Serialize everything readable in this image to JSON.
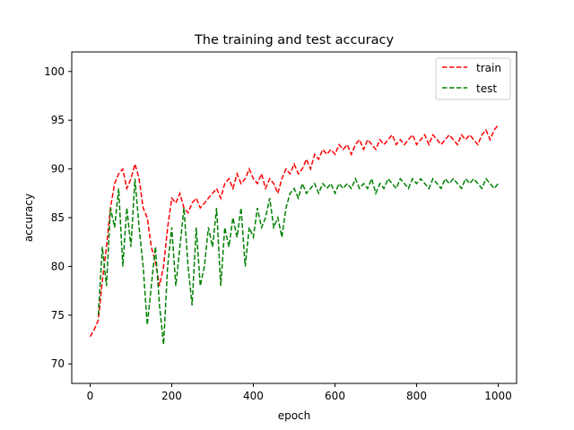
{
  "chart_data": {
    "type": "line",
    "title": "The training and test accuracy",
    "xlabel": "epoch",
    "ylabel": "accuracy",
    "xlim": [
      -45,
      1045
    ],
    "ylim": [
      68,
      102
    ],
    "xticks": [
      0,
      200,
      400,
      600,
      800,
      1000
    ],
    "yticks": [
      70,
      75,
      80,
      85,
      90,
      95,
      100
    ],
    "grid": false,
    "legend_position": "top-right",
    "series": [
      {
        "name": "train",
        "color": "#ff0000",
        "style": "dashed",
        "x": [
          0,
          10,
          20,
          30,
          40,
          50,
          60,
          70,
          80,
          90,
          100,
          110,
          120,
          130,
          140,
          150,
          160,
          170,
          180,
          190,
          200,
          210,
          220,
          230,
          240,
          250,
          260,
          270,
          280,
          290,
          300,
          310,
          320,
          330,
          340,
          350,
          360,
          370,
          380,
          390,
          400,
          410,
          420,
          430,
          440,
          450,
          460,
          470,
          480,
          490,
          500,
          510,
          520,
          530,
          540,
          550,
          560,
          570,
          580,
          590,
          600,
          610,
          620,
          630,
          640,
          650,
          660,
          670,
          680,
          690,
          700,
          710,
          720,
          730,
          740,
          750,
          760,
          770,
          780,
          790,
          800,
          810,
          820,
          830,
          840,
          850,
          860,
          870,
          880,
          890,
          900,
          910,
          920,
          930,
          940,
          950,
          960,
          970,
          980,
          990,
          1000
        ],
        "values": [
          72.8,
          73.5,
          74.5,
          78.5,
          82.0,
          86.0,
          88.5,
          89.5,
          90.0,
          88.0,
          89.0,
          90.5,
          89.0,
          86.0,
          85.0,
          82.0,
          80.5,
          78.0,
          80.0,
          84.0,
          87.0,
          86.5,
          87.5,
          86.0,
          85.5,
          86.5,
          87.0,
          86.0,
          86.5,
          87.0,
          87.5,
          88.0,
          87.0,
          88.5,
          89.0,
          88.0,
          89.5,
          88.5,
          89.0,
          90.0,
          89.0,
          88.5,
          89.5,
          88.0,
          89.0,
          88.5,
          87.5,
          89.0,
          90.0,
          89.5,
          90.5,
          89.5,
          90.0,
          91.0,
          90.0,
          91.5,
          91.0,
          92.0,
          91.5,
          92.0,
          91.5,
          92.5,
          92.0,
          92.5,
          91.5,
          92.5,
          93.0,
          92.0,
          93.0,
          92.5,
          92.0,
          93.0,
          92.5,
          93.0,
          93.5,
          92.5,
          93.0,
          92.5,
          93.0,
          93.5,
          92.5,
          93.0,
          93.5,
          92.5,
          93.5,
          93.0,
          92.5,
          93.0,
          93.5,
          93.0,
          92.5,
          93.5,
          93.0,
          93.5,
          93.0,
          92.5,
          93.5,
          94.0,
          93.0,
          94.0,
          94.5
        ]
      },
      {
        "name": "test",
        "color": "#008000",
        "style": "dashed",
        "x": [
          20,
          30,
          40,
          50,
          60,
          70,
          80,
          90,
          100,
          110,
          120,
          130,
          140,
          150,
          160,
          170,
          180,
          190,
          200,
          210,
          220,
          230,
          240,
          250,
          260,
          270,
          280,
          290,
          300,
          310,
          320,
          330,
          340,
          350,
          360,
          370,
          380,
          390,
          400,
          410,
          420,
          430,
          440,
          450,
          460,
          470,
          480,
          490,
          500,
          510,
          520,
          530,
          540,
          550,
          560,
          570,
          580,
          590,
          600,
          610,
          620,
          630,
          640,
          650,
          660,
          670,
          680,
          690,
          700,
          710,
          720,
          730,
          740,
          750,
          760,
          770,
          780,
          790,
          800,
          810,
          820,
          830,
          840,
          850,
          860,
          870,
          880,
          890,
          900,
          910,
          920,
          930,
          940,
          950,
          960,
          970,
          980,
          990,
          1000
        ],
        "values": [
          75.0,
          82.0,
          78.0,
          86.0,
          84.0,
          88.0,
          80.0,
          86.0,
          82.0,
          89.0,
          84.0,
          80.0,
          74.0,
          78.0,
          82.0,
          76.0,
          72.0,
          80.0,
          84.0,
          78.0,
          82.0,
          86.0,
          80.0,
          76.0,
          84.0,
          78.0,
          80.0,
          84.0,
          82.0,
          86.0,
          78.0,
          84.0,
          82.0,
          85.0,
          83.0,
          86.0,
          80.0,
          84.0,
          83.0,
          86.0,
          84.0,
          85.0,
          87.0,
          84.0,
          85.0,
          83.0,
          86.0,
          87.5,
          88.0,
          87.0,
          88.5,
          87.5,
          88.0,
          88.5,
          87.5,
          88.5,
          88.0,
          88.5,
          87.5,
          88.5,
          88.0,
          88.5,
          88.0,
          89.0,
          88.0,
          88.5,
          88.0,
          89.0,
          87.5,
          88.5,
          88.0,
          89.0,
          88.5,
          88.0,
          89.0,
          88.5,
          88.0,
          89.0,
          88.5,
          89.0,
          88.5,
          88.0,
          89.0,
          88.5,
          88.0,
          89.0,
          88.5,
          89.0,
          88.5,
          88.0,
          89.0,
          88.5,
          89.0,
          88.5,
          88.0,
          89.0,
          88.5,
          88.0,
          88.5
        ]
      }
    ]
  }
}
